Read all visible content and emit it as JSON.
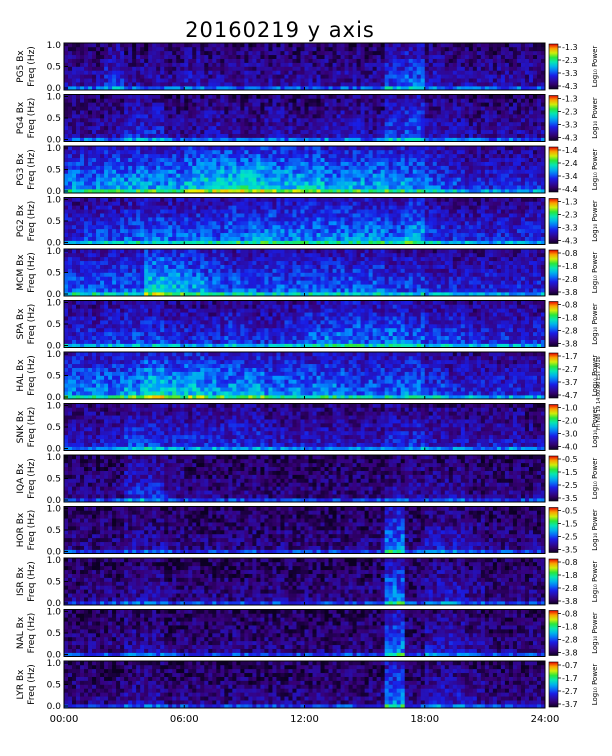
{
  "chart_data": {
    "type": "heatmap",
    "title": "20160219 y axis",
    "x_ticks": [
      "00:00",
      "06:00",
      "12:00",
      "18:00",
      "24:00"
    ],
    "x_range_hours": [
      0,
      24
    ],
    "ylim": [
      0,
      1.0
    ],
    "y_ticks": [
      "0.0",
      "0.5",
      "1.0"
    ],
    "y_label_line2": "Freq (Hz)",
    "colorbar_label": "Log₁₀ Power",
    "colormap": "rainbow (purple-blue-cyan-green-yellow-red)",
    "panels": [
      {
        "name": "PG5 Bx",
        "colorbar_ticks": [
          "-1.3",
          "-2.3",
          "-3.3",
          "-4.3"
        ],
        "activity": [
          0.2,
          0.2,
          0.3,
          0.2,
          0.2,
          0.2,
          0.25,
          0.2,
          0.2,
          0.2,
          0.2,
          0.2,
          0.2,
          0.2,
          0.2,
          0.2,
          0.35,
          0.4,
          0.25,
          0.2,
          0.2,
          0.2,
          0.2,
          0.2
        ]
      },
      {
        "name": "PG4 Bx",
        "colorbar_ticks": [
          "-1.3",
          "-2.3",
          "-3.3",
          "-4.3"
        ],
        "activity": [
          0.2,
          0.2,
          0.2,
          0.3,
          0.3,
          0.2,
          0.2,
          0.25,
          0.2,
          0.2,
          0.25,
          0.2,
          0.2,
          0.25,
          0.25,
          0.2,
          0.35,
          0.4,
          0.25,
          0.25,
          0.2,
          0.2,
          0.2,
          0.2
        ]
      },
      {
        "name": "PG3 Bx",
        "colorbar_ticks": [
          "-1.4",
          "-2.4",
          "-3.4",
          "-4.4"
        ],
        "activity": [
          0.45,
          0.45,
          0.5,
          0.5,
          0.5,
          0.5,
          0.55,
          0.6,
          0.6,
          0.6,
          0.55,
          0.55,
          0.55,
          0.5,
          0.5,
          0.5,
          0.5,
          0.45,
          0.4,
          0.35,
          0.3,
          0.3,
          0.3,
          0.3
        ]
      },
      {
        "name": "PG2 Bx",
        "colorbar_ticks": [
          "-1.3",
          "-2.3",
          "-3.3",
          "-4.3"
        ],
        "activity": [
          0.3,
          0.35,
          0.35,
          0.4,
          0.4,
          0.4,
          0.4,
          0.4,
          0.45,
          0.45,
          0.45,
          0.45,
          0.45,
          0.45,
          0.45,
          0.45,
          0.4,
          0.5,
          0.35,
          0.3,
          0.3,
          0.3,
          0.3,
          0.3
        ]
      },
      {
        "name": "MCM Bx",
        "colorbar_ticks": [
          "-0.8",
          "-1.8",
          "-2.8",
          "-3.8"
        ],
        "activity": [
          0.4,
          0.4,
          0.4,
          0.4,
          0.6,
          0.55,
          0.5,
          0.45,
          0.4,
          0.4,
          0.4,
          0.4,
          0.4,
          0.4,
          0.4,
          0.4,
          0.35,
          0.35,
          0.3,
          0.3,
          0.3,
          0.3,
          0.3,
          0.3
        ]
      },
      {
        "name": "SPA Bx",
        "colorbar_ticks": [
          "-0.8",
          "-1.8",
          "-2.8",
          "-3.8"
        ],
        "activity": [
          0.3,
          0.3,
          0.35,
          0.35,
          0.35,
          0.3,
          0.3,
          0.3,
          0.35,
          0.3,
          0.3,
          0.35,
          0.4,
          0.45,
          0.45,
          0.4,
          0.45,
          0.4,
          0.35,
          0.35,
          0.3,
          0.3,
          0.3,
          0.3
        ]
      },
      {
        "name": "HAL Bx",
        "colorbar_ticks": [
          "-1.7",
          "-2.7",
          "-3.7",
          "-4.7"
        ],
        "activity": [
          0.45,
          0.45,
          0.45,
          0.5,
          0.6,
          0.55,
          0.55,
          0.5,
          0.5,
          0.5,
          0.45,
          0.45,
          0.45,
          0.45,
          0.4,
          0.4,
          0.4,
          0.45,
          0.35,
          0.3,
          0.3,
          0.3,
          0.3,
          0.3
        ]
      },
      {
        "name": "SNK Bx",
        "colorbar_ticks": [
          "-1.0",
          "-2.0",
          "-3.0",
          "-4.0"
        ],
        "activity": [
          0.25,
          0.25,
          0.25,
          0.35,
          0.35,
          0.3,
          0.3,
          0.3,
          0.3,
          0.3,
          0.25,
          0.25,
          0.25,
          0.25,
          0.25,
          0.25,
          0.3,
          0.3,
          0.25,
          0.25,
          0.25,
          0.25,
          0.25,
          0.2
        ]
      },
      {
        "name": "IQA Bx",
        "colorbar_ticks": [
          "-0.5",
          "-1.5",
          "-2.5",
          "-3.5"
        ],
        "activity": [
          0.15,
          0.15,
          0.15,
          0.3,
          0.3,
          0.2,
          0.15,
          0.15,
          0.15,
          0.15,
          0.15,
          0.15,
          0.15,
          0.15,
          0.15,
          0.15,
          0.2,
          0.2,
          0.2,
          0.2,
          0.15,
          0.15,
          0.15,
          0.15
        ]
      },
      {
        "name": "HOR Bx",
        "colorbar_ticks": [
          "-0.5",
          "-1.5",
          "-2.5",
          "-3.5"
        ],
        "activity": [
          0.15,
          0.15,
          0.15,
          0.2,
          0.2,
          0.15,
          0.15,
          0.15,
          0.15,
          0.15,
          0.15,
          0.15,
          0.15,
          0.15,
          0.15,
          0.15,
          0.45,
          0.15,
          0.25,
          0.25,
          0.2,
          0.15,
          0.15,
          0.15
        ]
      },
      {
        "name": "ISR Bx",
        "colorbar_ticks": [
          "-0.8",
          "-1.8",
          "-2.8",
          "-3.8"
        ],
        "activity": [
          0.15,
          0.15,
          0.15,
          0.2,
          0.2,
          0.15,
          0.15,
          0.15,
          0.15,
          0.15,
          0.15,
          0.15,
          0.15,
          0.15,
          0.15,
          0.15,
          0.45,
          0.15,
          0.25,
          0.25,
          0.2,
          0.15,
          0.15,
          0.15
        ]
      },
      {
        "name": "NAL Bx",
        "colorbar_ticks": [
          "-0.8",
          "-1.8",
          "-2.8",
          "-3.8"
        ],
        "activity": [
          0.15,
          0.15,
          0.15,
          0.2,
          0.2,
          0.15,
          0.15,
          0.15,
          0.15,
          0.15,
          0.15,
          0.15,
          0.15,
          0.15,
          0.15,
          0.15,
          0.45,
          0.15,
          0.25,
          0.25,
          0.2,
          0.15,
          0.15,
          0.15
        ]
      },
      {
        "name": "LYR Bx",
        "colorbar_ticks": [
          "-0.7",
          "-1.7",
          "-2.7",
          "-3.7"
        ],
        "activity": [
          0.15,
          0.15,
          0.15,
          0.2,
          0.2,
          0.15,
          0.15,
          0.15,
          0.15,
          0.15,
          0.15,
          0.15,
          0.15,
          0.15,
          0.15,
          0.15,
          0.45,
          0.15,
          0.25,
          0.25,
          0.2,
          0.15,
          0.15,
          0.15
        ]
      }
    ]
  },
  "side_note": "Fri Feb 19 14:00:00 EST 2016"
}
